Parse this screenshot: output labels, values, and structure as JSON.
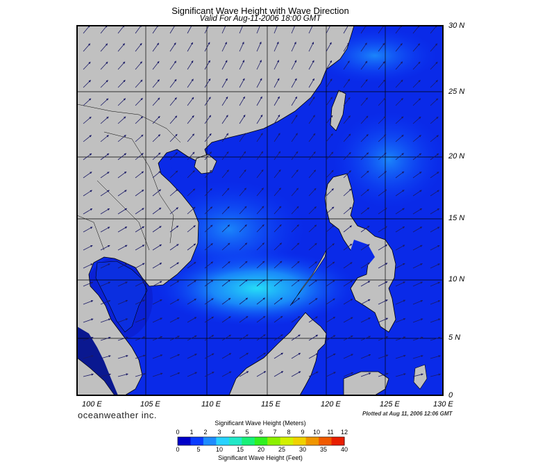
{
  "title": "Significant Wave Height with Wave Direction",
  "subtitle": "Valid For Aug-11-2006 18:00 GMT",
  "map": {
    "lat_labels": [
      "30 N",
      "25 N",
      "20 N",
      "15 N",
      "10 N",
      "5 N",
      "0"
    ],
    "lon_labels": [
      "100 E",
      "105 E",
      "110 E",
      "115 E",
      "120 E",
      "125 E",
      "130 E"
    ],
    "land_color": "#c0c0c0",
    "water_low": "#0a1fe6",
    "water_high": "#27e7f7"
  },
  "brand": "oceanweather inc.",
  "plotted": "Plotted at Aug 11, 2006 12:06 GMT",
  "colorbar": {
    "title_meters": "Significant Wave Height (Meters)",
    "title_feet": "Significant Wave Height (Feet)",
    "meter_ticks": [
      "0",
      "1",
      "2",
      "3",
      "4",
      "5",
      "6",
      "7",
      "8",
      "9",
      "10",
      "11",
      "12"
    ],
    "feet_ticks": [
      "0",
      "5",
      "10",
      "15",
      "20",
      "25",
      "30",
      "35",
      "40"
    ],
    "colors": [
      "#0000c8",
      "#0a3cff",
      "#1e8cff",
      "#28d2ff",
      "#22e8c8",
      "#18f078",
      "#30f020",
      "#8cf000",
      "#d2f000",
      "#f0d200",
      "#f09600",
      "#f05a00",
      "#e81e00"
    ]
  }
}
